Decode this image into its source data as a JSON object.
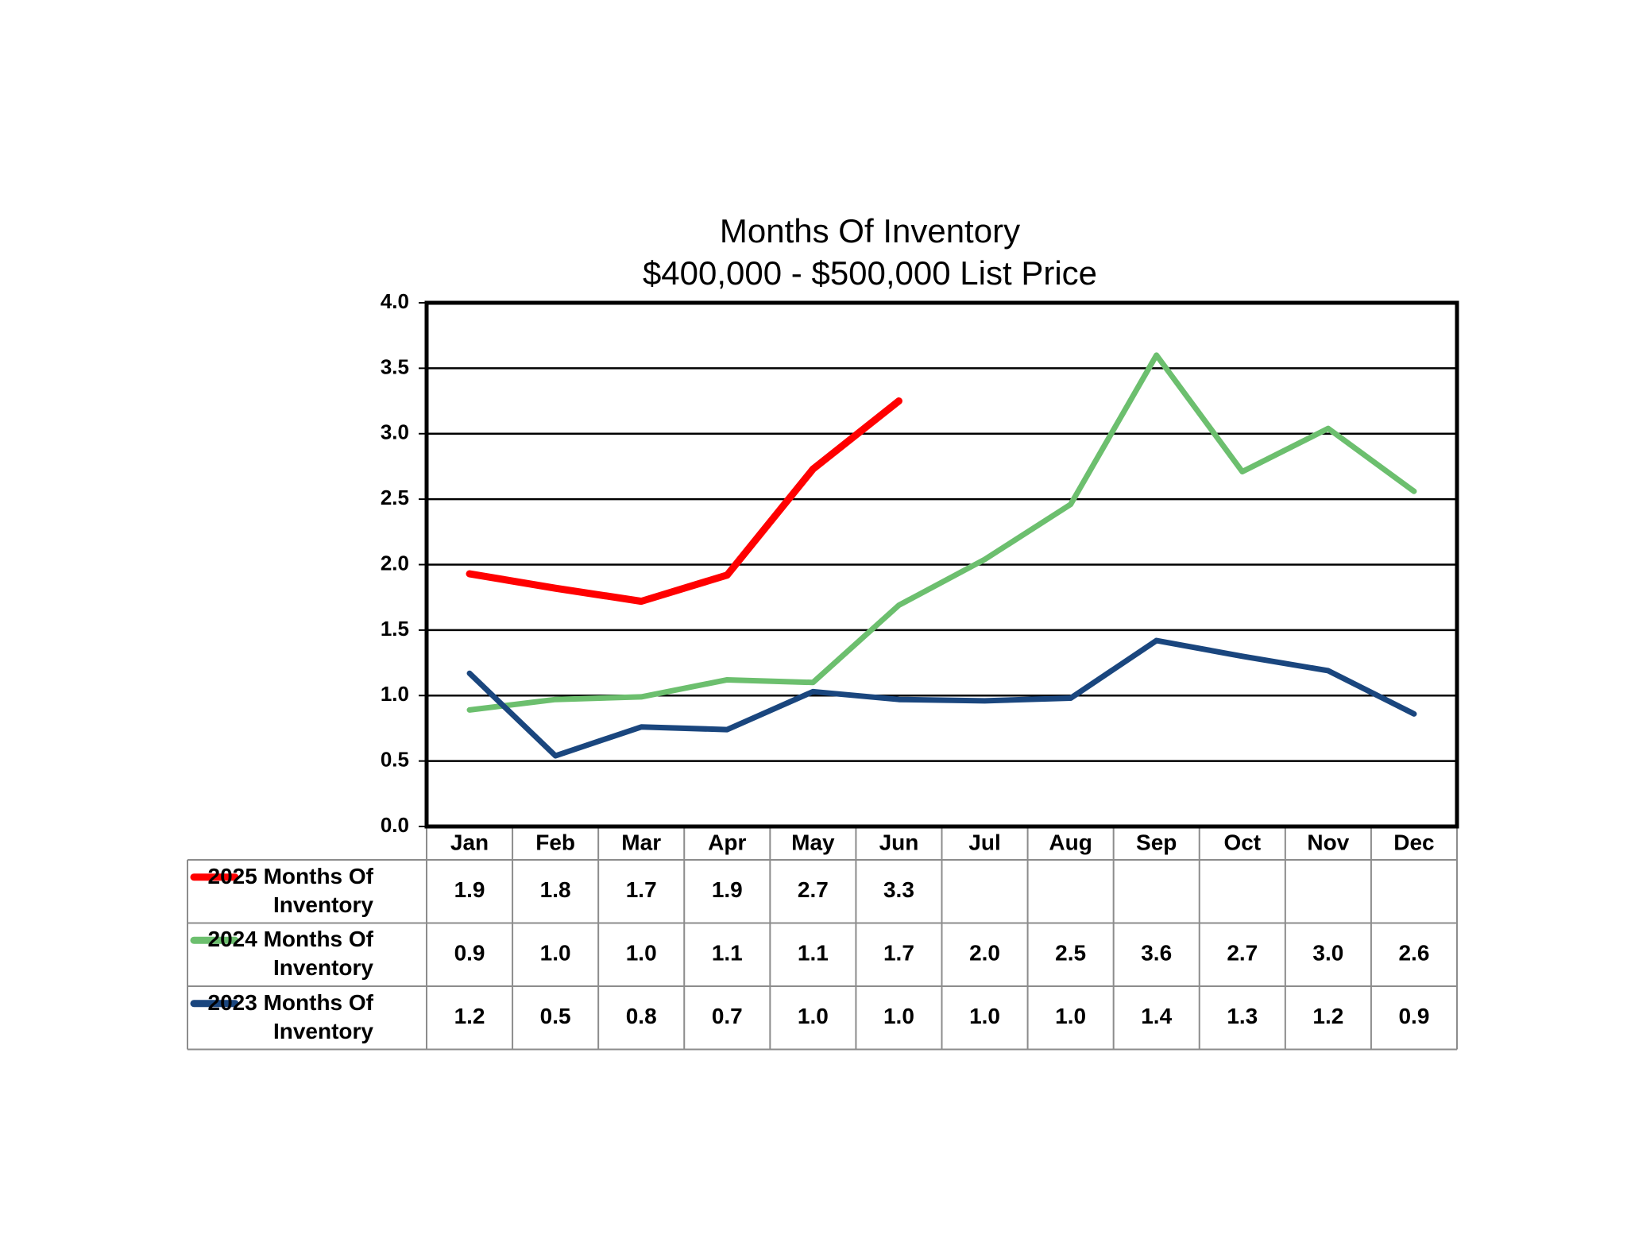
{
  "chart_data": {
    "type": "line",
    "title": "Months Of Inventory",
    "subtitle": "$400,000 - $500,000 List Price",
    "categories": [
      "Jan",
      "Feb",
      "Mar",
      "Apr",
      "May",
      "Jun",
      "Jul",
      "Aug",
      "Sep",
      "Oct",
      "Nov",
      "Dec"
    ],
    "series": [
      {
        "name": "2025 Months Of Inventory",
        "color": "#ff0000",
        "values": [
          1.93,
          1.82,
          1.72,
          1.92,
          2.73,
          3.25,
          null,
          null,
          null,
          null,
          null,
          null
        ],
        "value_labels": [
          "1.9",
          "1.8",
          "1.7",
          "1.9",
          "2.7",
          "3.3",
          null,
          null,
          null,
          null,
          null,
          null
        ]
      },
      {
        "name": "2024 Months Of Inventory",
        "color": "#6cbf6e",
        "values": [
          0.89,
          0.97,
          0.99,
          1.12,
          1.1,
          1.69,
          2.04,
          2.46,
          3.6,
          2.71,
          3.04,
          2.56
        ],
        "value_labels": [
          "0.9",
          "1.0",
          "1.0",
          "1.1",
          "1.1",
          "1.7",
          "2.0",
          "2.5",
          "3.6",
          "2.7",
          "3.0",
          "2.6"
        ]
      },
      {
        "name": "2023 Months Of Inventory",
        "color": "#1a467e",
        "values": [
          1.17,
          0.54,
          0.76,
          0.74,
          1.03,
          0.97,
          0.96,
          0.98,
          1.42,
          1.3,
          1.19,
          0.86
        ],
        "value_labels": [
          "1.2",
          "0.5",
          "0.8",
          "0.7",
          "1.0",
          "1.0",
          "1.0",
          "1.0",
          "1.4",
          "1.3",
          "1.2",
          "0.9"
        ]
      }
    ],
    "ylim": [
      0,
      4
    ],
    "yticks": [
      {
        "value": 0,
        "label": "0.0"
      },
      0.5,
      {
        "value": 1,
        "label": "1.0"
      },
      1.5,
      {
        "value": 2,
        "label": "2.0"
      },
      2.5,
      {
        "value": 3,
        "label": "3.0"
      },
      3.5,
      {
        "value": 4,
        "label": "4.0"
      }
    ],
    "grid": true
  }
}
